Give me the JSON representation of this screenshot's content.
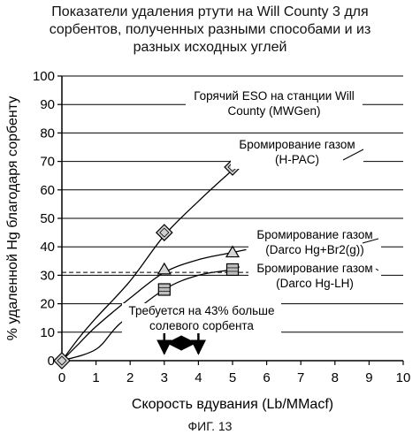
{
  "figure": {
    "caption": "ФИГ. 13"
  },
  "chart_data": {
    "type": "line",
    "title": [
      "Показатели удаления ртути на Will County 3 для",
      "сорбентов, полученных разными способами и из",
      "разных исходных углей"
    ],
    "xlabel": "Скорость вдувания (Lb/MMacf)",
    "ylabel": "% удаленной Hg благодаря сорбенту",
    "xlim": [
      0,
      10
    ],
    "ylim": [
      0,
      100
    ],
    "xticks": [
      "0",
      "1",
      "2",
      "3",
      "4",
      "5",
      "6",
      "7",
      "8",
      "9",
      "10"
    ],
    "yticks": [
      "0",
      "10",
      "20",
      "30",
      "40",
      "50",
      "60",
      "70",
      "80",
      "90",
      "100"
    ],
    "grid": "horizontal",
    "series": [
      {
        "name": "Бромирование газом (H-PAC)",
        "marker": "diamond",
        "points": [
          [
            0,
            0
          ],
          [
            3,
            45
          ],
          [
            5,
            68
          ]
        ],
        "curve": [
          [
            0,
            0
          ],
          [
            0.5,
            8
          ],
          [
            1,
            15
          ],
          [
            2,
            28
          ],
          [
            3,
            44
          ],
          [
            4,
            56
          ],
          [
            5,
            67
          ],
          [
            5.4,
            71
          ]
        ]
      },
      {
        "name": "Бромирование газом (Darco Hg+Br2(g))",
        "marker": "triangle",
        "points": [
          [
            0,
            0
          ],
          [
            3,
            32
          ],
          [
            5,
            38
          ]
        ],
        "curve": [
          [
            0,
            0
          ],
          [
            0.5,
            6
          ],
          [
            1,
            12
          ],
          [
            2,
            22
          ],
          [
            3,
            31
          ],
          [
            4,
            35.5
          ],
          [
            5,
            38
          ],
          [
            5.4,
            39
          ]
        ]
      },
      {
        "name": "Бромирование газом (Darco Hg-LH)",
        "marker": "square",
        "points": [
          [
            0,
            0
          ],
          [
            3,
            25
          ],
          [
            5,
            32
          ]
        ],
        "curve": [
          [
            0,
            0
          ],
          [
            1,
            4
          ],
          [
            1.7,
            13
          ],
          [
            3,
            25
          ],
          [
            4,
            30
          ],
          [
            5,
            32
          ],
          [
            5.2,
            33
          ]
        ]
      }
    ],
    "reference_lines": [
      {
        "y": 90,
        "label": "Горячий ESO на станции Will County (MWGen)"
      },
      {
        "y": 31,
        "style": "dashed"
      }
    ],
    "annotations": [
      {
        "text": "Горячий ESO на станции Will County (MWGen)",
        "lines": [
          "Горячий ESO на станции Will",
          "County (MWGen)"
        ]
      },
      {
        "text": "Бромирование газом (H-PAC)",
        "lines": [
          "Бромирование газом",
          "(H-PAC)"
        ]
      },
      {
        "text": "Бромирование газом (Darco Hg+Br2(g))",
        "lines": [
          "Бромирование газом",
          "(Darco Hg+Br2(g))"
        ]
      },
      {
        "text": "Бромирование газом (Darco Hg-LH)",
        "lines": [
          "Бромирование газом",
          "(Darco Hg-LH)"
        ]
      },
      {
        "text": "Требуется на 43% больше солевого сорбента",
        "lines": [
          "Требуется на 43% больше",
          "солевого сорбента"
        ]
      }
    ],
    "range_arrow": {
      "x_from": 3,
      "x_to": 4
    }
  }
}
